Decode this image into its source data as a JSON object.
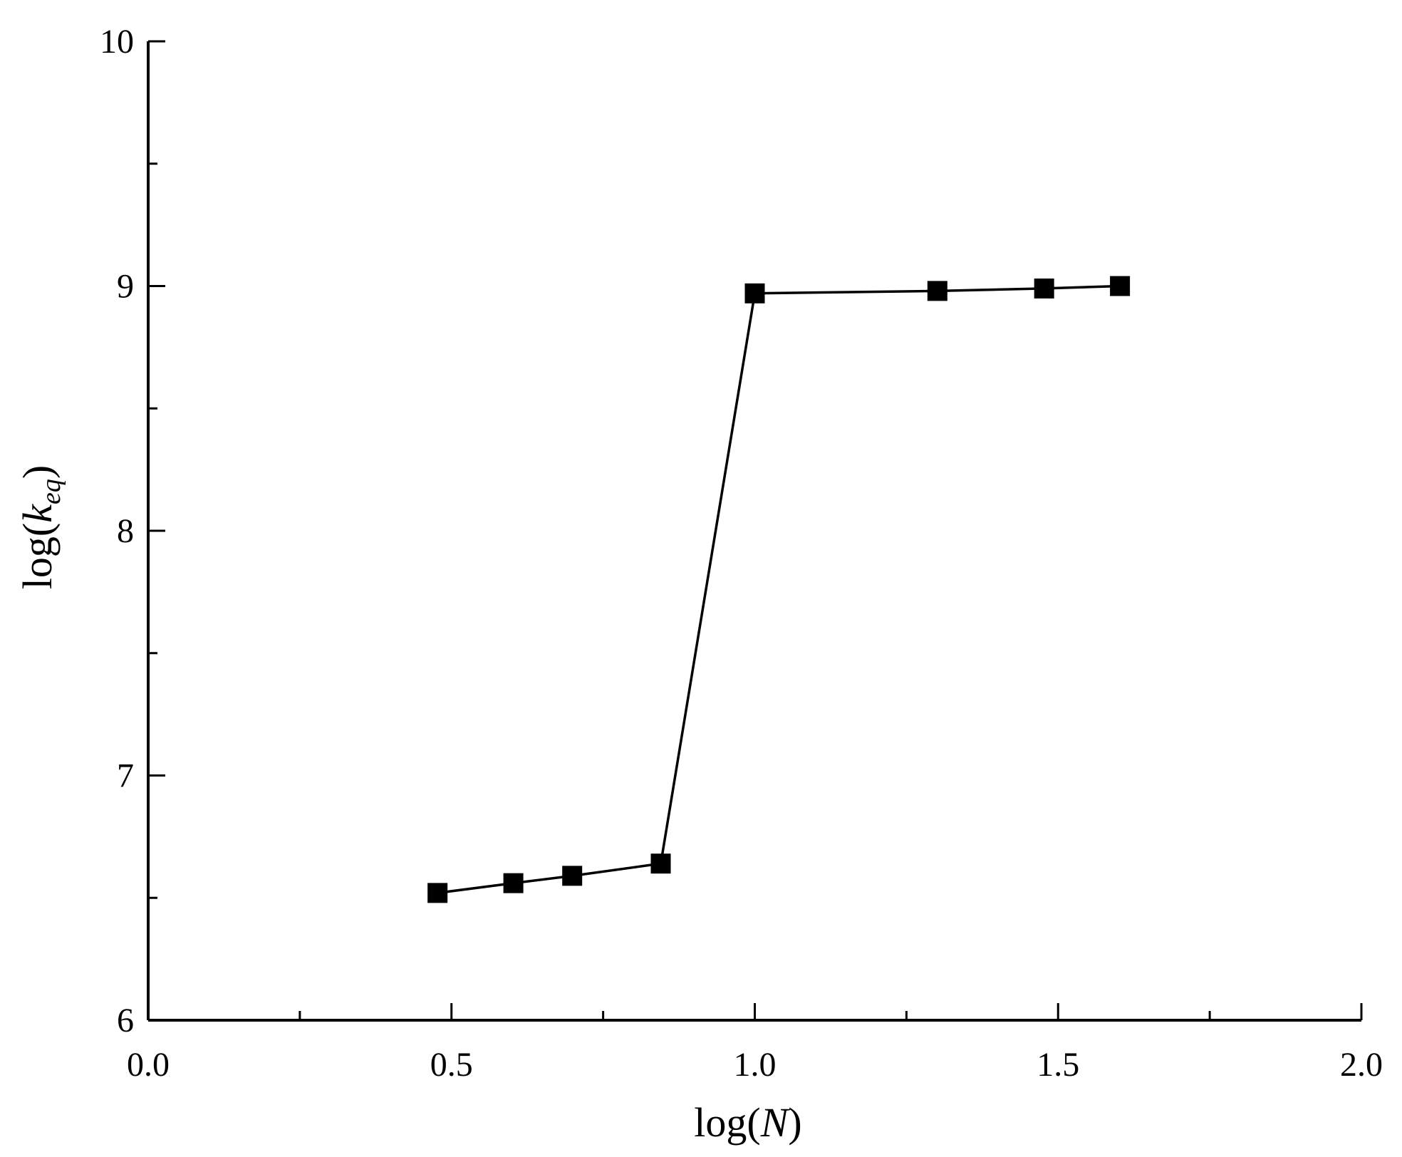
{
  "chart_data": {
    "type": "line",
    "xlabel": {
      "prefix": "log(",
      "var": "N",
      "suffix": ")"
    },
    "ylabel": {
      "prefix": "log(",
      "var": "k",
      "sub": "eq",
      "suffix": ")"
    },
    "xlim": [
      0.0,
      2.0
    ],
    "ylim": [
      6,
      10
    ],
    "xticks": [
      0.0,
      0.5,
      1.0,
      1.5,
      2.0
    ],
    "xtick_labels": [
      "0.0",
      "0.5",
      "1.0",
      "1.5",
      "2.0"
    ],
    "x_minor_ticks": [
      0.25,
      0.75,
      1.25,
      1.75
    ],
    "yticks": [
      6,
      7,
      8,
      9,
      10
    ],
    "ytick_labels": [
      "6",
      "7",
      "8",
      "9",
      "10"
    ],
    "y_minor_ticks": [
      6.5,
      7.5,
      8.5,
      9.5
    ],
    "grid": false,
    "legend": "none",
    "series": [
      {
        "marker": "square",
        "color": "#000000",
        "x": [
          0.477,
          0.602,
          0.699,
          0.845,
          1.0,
          1.301,
          1.477,
          1.602
        ],
        "y": [
          6.52,
          6.56,
          6.59,
          6.64,
          8.97,
          8.98,
          8.99,
          9.0
        ]
      }
    ]
  }
}
